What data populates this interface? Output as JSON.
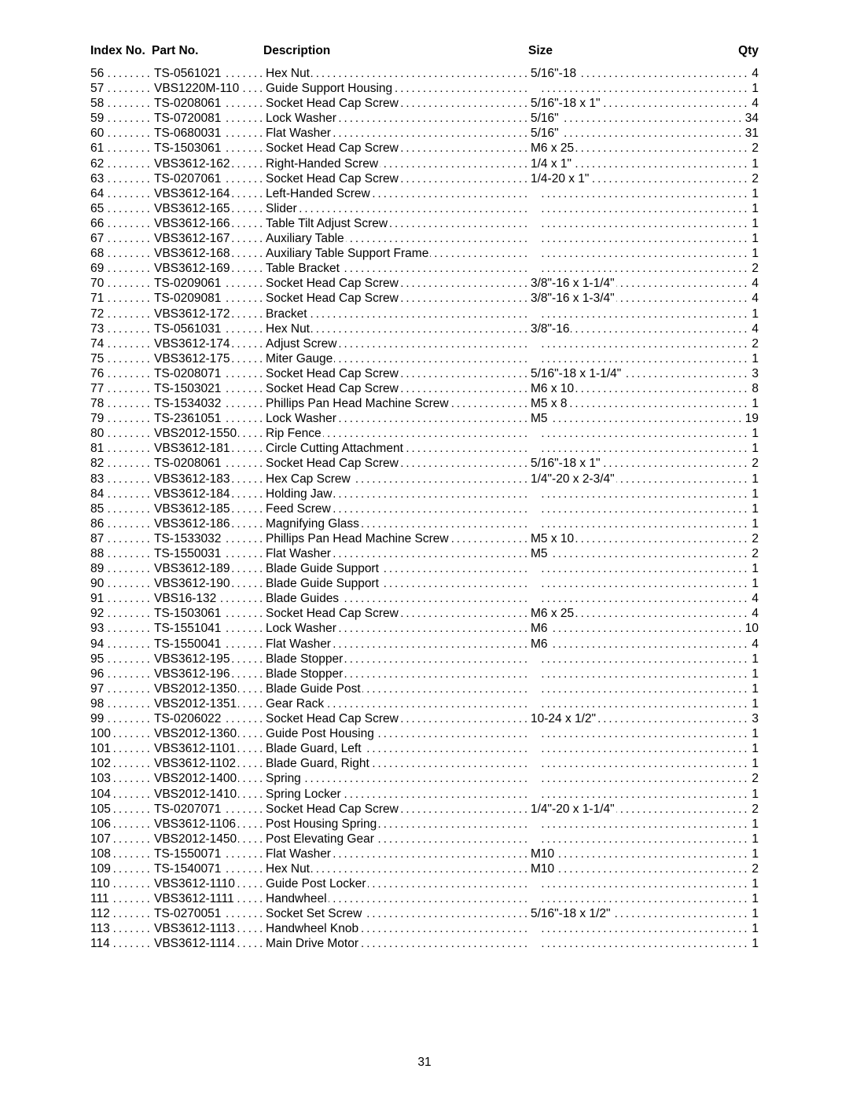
{
  "pageNumber": "31",
  "headers": {
    "index": "Index No.",
    "part": "Part No.",
    "description": "Description",
    "size": "Size",
    "qty": "Qty"
  },
  "rows": [
    {
      "idx": "56",
      "part": "TS-0561021",
      "desc": "Hex Nut",
      "size": "5/16\"-18",
      "qty": "4"
    },
    {
      "idx": "57",
      "part": "VBS1220M-110",
      "desc": "Guide Support Housing",
      "size": "",
      "qty": "1"
    },
    {
      "idx": "58",
      "part": "TS-0208061",
      "desc": "Socket Head Cap Screw",
      "size": "5/16\"-18 x 1\"",
      "qty": "4"
    },
    {
      "idx": "59",
      "part": "TS-0720081",
      "desc": "Lock Washer",
      "size": "5/16\"",
      "qty": "34"
    },
    {
      "idx": "60",
      "part": "TS-0680031",
      "desc": "Flat Washer",
      "size": "5/16\"",
      "qty": "31"
    },
    {
      "idx": "61",
      "part": "TS-1503061",
      "desc": "Socket Head Cap Screw",
      "size": "M6 x 25",
      "qty": "2"
    },
    {
      "idx": "62",
      "part": "VBS3612-162",
      "desc": "Right-Handed Screw",
      "size": "1/4 x 1\"",
      "qty": "1"
    },
    {
      "idx": "63",
      "part": "TS-0207061",
      "desc": "Socket Head Cap Screw",
      "size": "1/4-20 x 1\"",
      "qty": "2"
    },
    {
      "idx": "64",
      "part": "VBS3612-164",
      "desc": "Left-Handed Screw",
      "size": "",
      "qty": "1"
    },
    {
      "idx": "65",
      "part": "VBS3612-165",
      "desc": "Slider",
      "size": "",
      "qty": "1"
    },
    {
      "idx": "66",
      "part": "VBS3612-166",
      "desc": "Table Tilt Adjust Screw",
      "size": "",
      "qty": "1"
    },
    {
      "idx": "67",
      "part": "VBS3612-167",
      "desc": "Auxiliary Table",
      "size": "",
      "qty": "1"
    },
    {
      "idx": "68",
      "part": "VBS3612-168",
      "desc": "Auxiliary Table Support Frame",
      "size": "",
      "qty": "1"
    },
    {
      "idx": "69",
      "part": "VBS3612-169",
      "desc": "Table Bracket",
      "size": "",
      "qty": "2"
    },
    {
      "idx": "70",
      "part": "TS-0209061",
      "desc": "Socket Head Cap Screw",
      "size": "3/8\"-16 x 1-1/4\"",
      "qty": "4"
    },
    {
      "idx": "71",
      "part": "TS-0209081",
      "desc": "Socket Head Cap Screw",
      "size": "3/8\"-16 x 1-3/4\"",
      "qty": "4"
    },
    {
      "idx": "72",
      "part": "VBS3612-172",
      "desc": "Bracket",
      "size": "",
      "qty": "1"
    },
    {
      "idx": "73",
      "part": "TS-0561031",
      "desc": "Hex Nut",
      "size": "3/8\"-16",
      "qty": "4"
    },
    {
      "idx": "74",
      "part": "VBS3612-174",
      "desc": "Adjust Screw",
      "size": "",
      "qty": "2"
    },
    {
      "idx": "75",
      "part": "VBS3612-175",
      "desc": "Miter Gauge",
      "size": "",
      "qty": "1"
    },
    {
      "idx": "76",
      "part": "TS-0208071",
      "desc": "Socket Head Cap Screw",
      "size": "5/16\"-18 x 1-1/4\"",
      "qty": "3"
    },
    {
      "idx": "77",
      "part": "TS-1503021",
      "desc": "Socket Head Cap Screw",
      "size": "M6 x 10",
      "qty": "8"
    },
    {
      "idx": "78",
      "part": "TS-1534032",
      "desc": "Phillips Pan Head Machine Screw",
      "size": "M5 x 8",
      "qty": "1"
    },
    {
      "idx": "79",
      "part": "TS-2361051",
      "desc": "Lock Washer",
      "size": "M5",
      "qty": "19"
    },
    {
      "idx": "80",
      "part": "VBS2012-1550",
      "desc": "Rip Fence",
      "size": "",
      "qty": "1"
    },
    {
      "idx": "81",
      "part": "VBS3612-181",
      "desc": "Circle Cutting Attachment",
      "size": "",
      "qty": "1"
    },
    {
      "idx": "82",
      "part": "TS-0208061",
      "desc": "Socket Head Cap Screw",
      "size": "5/16\"-18 x 1\"",
      "qty": "2"
    },
    {
      "idx": "83",
      "part": "VBS3612-183",
      "desc": "Hex Cap Screw",
      "size": "1/4\"-20 x 2-3/4\"",
      "qty": "1"
    },
    {
      "idx": "84",
      "part": "VBS3612-184",
      "desc": "Holding Jaw",
      "size": "",
      "qty": "1"
    },
    {
      "idx": "85",
      "part": "VBS3612-185",
      "desc": "Feed Screw",
      "size": "",
      "qty": "1"
    },
    {
      "idx": "86",
      "part": "VBS3612-186",
      "desc": "Magnifying Glass",
      "size": "",
      "qty": "1"
    },
    {
      "idx": "87",
      "part": "TS-1533032",
      "desc": "Phillips Pan Head Machine Screw",
      "size": "M5 x 10",
      "qty": "2"
    },
    {
      "idx": "88",
      "part": "TS-1550031",
      "desc": "Flat Washer",
      "size": "M5",
      "qty": "2"
    },
    {
      "idx": "89",
      "part": "VBS3612-189",
      "desc": "Blade Guide Support",
      "size": "",
      "qty": "1"
    },
    {
      "idx": "90",
      "part": "VBS3612-190",
      "desc": "Blade Guide Support",
      "size": "",
      "qty": "1"
    },
    {
      "idx": "91",
      "part": "VBS16-132",
      "desc": "Blade Guides",
      "size": "",
      "qty": "4"
    },
    {
      "idx": "92",
      "part": "TS-1503061",
      "desc": "Socket Head Cap Screw",
      "size": "M6 x 25",
      "qty": "4"
    },
    {
      "idx": "93",
      "part": "TS-1551041",
      "desc": "Lock Washer",
      "size": "M6",
      "qty": "10"
    },
    {
      "idx": "94",
      "part": "TS-1550041",
      "desc": "Flat Washer",
      "size": "M6",
      "qty": "4"
    },
    {
      "idx": "95",
      "part": "VBS3612-195",
      "desc": "Blade Stopper",
      "size": "",
      "qty": "1"
    },
    {
      "idx": "96",
      "part": "VBS3612-196",
      "desc": "Blade Stopper",
      "size": "",
      "qty": "1"
    },
    {
      "idx": "97",
      "part": "VBS2012-1350",
      "desc": "Blade Guide Post",
      "size": "",
      "qty": "1"
    },
    {
      "idx": "98",
      "part": "VBS2012-1351",
      "desc": "Gear Rack",
      "size": "",
      "qty": "1"
    },
    {
      "idx": "99",
      "part": "TS-0206022",
      "desc": "Socket Head Cap Screw",
      "size": "10-24 x 1/2\"",
      "qty": "3"
    },
    {
      "idx": "100",
      "part": "VBS2012-1360",
      "desc": "Guide Post Housing",
      "size": "",
      "qty": "1"
    },
    {
      "idx": "101",
      "part": "VBS3612-1101",
      "desc": "Blade Guard, Left",
      "size": "",
      "qty": "1"
    },
    {
      "idx": "102",
      "part": "VBS3612-1102",
      "desc": "Blade Guard, Right",
      "size": "",
      "qty": "1"
    },
    {
      "idx": "103",
      "part": "VBS2012-1400",
      "desc": "Spring",
      "size": "",
      "qty": "2"
    },
    {
      "idx": "104",
      "part": "VBS2012-1410",
      "desc": "Spring Locker",
      "size": "",
      "qty": "1"
    },
    {
      "idx": "105",
      "part": "TS-0207071",
      "desc": "Socket Head Cap Screw",
      "size": "1/4\"-20 x 1-1/4\"",
      "qty": "2"
    },
    {
      "idx": "106",
      "part": "VBS3612-1106",
      "desc": "Post Housing Spring",
      "size": "",
      "qty": "1"
    },
    {
      "idx": "107",
      "part": "VBS2012-1450",
      "desc": "Post Elevating Gear",
      "size": "",
      "qty": "1"
    },
    {
      "idx": "108",
      "part": "TS-1550071",
      "desc": "Flat Washer",
      "size": "M10",
      "qty": "1"
    },
    {
      "idx": "109",
      "part": "TS-1540071",
      "desc": "Hex Nut",
      "size": "M10",
      "qty": "2"
    },
    {
      "idx": "110",
      "part": "VBS3612-1110",
      "desc": "Guide Post Locker",
      "size": "",
      "qty": "1"
    },
    {
      "idx": "111",
      "part": "VBS3612-1111",
      "desc": "Handwheel",
      "size": "",
      "qty": "1"
    },
    {
      "idx": "112",
      "part": "TS-0270051",
      "desc": "Socket Set Screw",
      "size": "5/16\"-18 x 1/2\"",
      "qty": "1"
    },
    {
      "idx": "113",
      "part": "VBS3612-1113",
      "desc": "Handwheel Knob",
      "size": "",
      "qty": "1"
    },
    {
      "idx": "114",
      "part": "VBS3612-1114",
      "desc": "Main Drive Motor",
      "size": "",
      "qty": "1"
    }
  ]
}
